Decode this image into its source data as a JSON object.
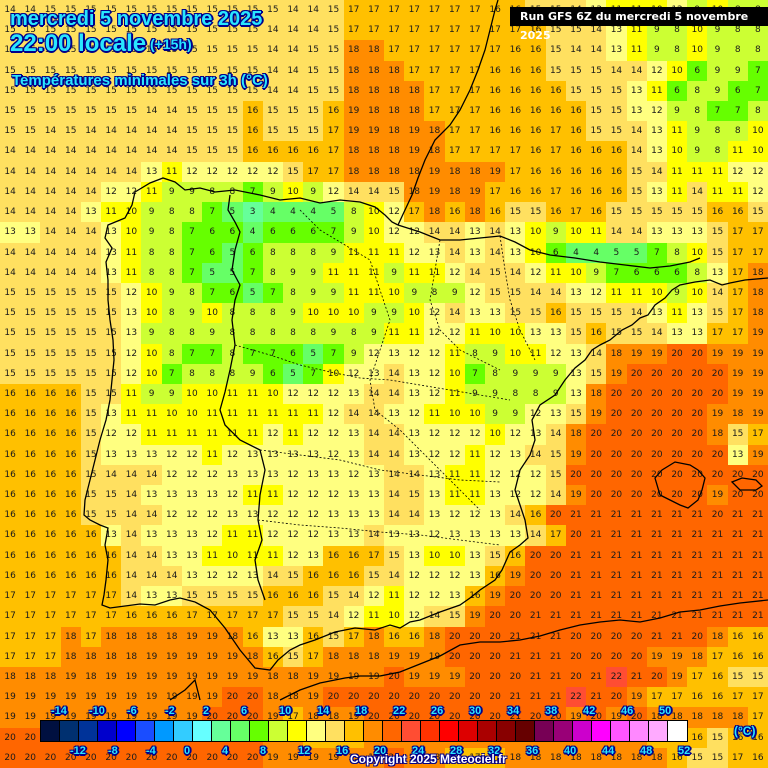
{
  "header": {
    "date": "mercredi 5 novembre 2025",
    "time": "22:00 locale",
    "offset": "(+15h)",
    "variable": "Températures minimales sur 3h (°C)",
    "run": "Run GFS 6Z du mercredi 5 novembre 2025"
  },
  "legend": {
    "unit": "(°C)",
    "top_labels": [
      "-14",
      "-10",
      "-6",
      "-2",
      "2",
      "6",
      "10",
      "14",
      "18",
      "22",
      "26",
      "30",
      "34",
      "38",
      "42",
      "46",
      "50"
    ],
    "bottom_labels": [
      "-12",
      "-8",
      "-4",
      "0",
      "4",
      "8",
      "12",
      "16",
      "20",
      "24",
      "28",
      "32",
      "36",
      "40",
      "44",
      "48",
      "52"
    ],
    "colors": [
      "#001040",
      "#003070",
      "#003399",
      "#0000cc",
      "#0000ff",
      "#1a4dff",
      "#0099ff",
      "#33ccff",
      "#66ffff",
      "#66ff99",
      "#66ff66",
      "#66ff00",
      "#ccff33",
      "#ffff00",
      "#ffff80",
      "#ffe060",
      "#ffc000",
      "#ff8c00",
      "#ff6600",
      "#ff4d33",
      "#ff3300",
      "#ff0000",
      "#dd0000",
      "#aa0000",
      "#880000",
      "#660000",
      "#770055",
      "#990077",
      "#cc00cc",
      "#ff00ff",
      "#ff55ff",
      "#ff88ff",
      "#ffaaff",
      "#ffffff"
    ],
    "min": -14,
    "step": 2
  },
  "copyright": "Copyright 2025 Meteociel.fr",
  "grid": {
    "cols": 38,
    "rows": 38,
    "values": [
      [
        14,
        14,
        15,
        15,
        15,
        15,
        15,
        15,
        15,
        15,
        15,
        15,
        15,
        15,
        14,
        14,
        15,
        17,
        17,
        17,
        17,
        17,
        17,
        17,
        16,
        16,
        15,
        15,
        14,
        13,
        11,
        11,
        10,
        12,
        9,
        10,
        8,
        8
      ],
      [
        15,
        15,
        15,
        15,
        15,
        15,
        15,
        15,
        15,
        15,
        15,
        15,
        15,
        14,
        14,
        14,
        15,
        17,
        17,
        17,
        17,
        17,
        17,
        17,
        17,
        17,
        16,
        15,
        15,
        14,
        13,
        11,
        9,
        8,
        10,
        9,
        8,
        8
      ],
      [
        15,
        15,
        15,
        15,
        15,
        15,
        15,
        15,
        15,
        15,
        15,
        15,
        15,
        14,
        14,
        15,
        15,
        18,
        18,
        17,
        17,
        17,
        17,
        17,
        17,
        16,
        16,
        15,
        14,
        14,
        13,
        11,
        9,
        8,
        10,
        9,
        8,
        8
      ],
      [
        15,
        15,
        15,
        15,
        15,
        15,
        15,
        15,
        15,
        15,
        15,
        15,
        15,
        14,
        14,
        15,
        15,
        18,
        18,
        18,
        17,
        17,
        17,
        17,
        16,
        16,
        16,
        15,
        15,
        15,
        14,
        14,
        12,
        10,
        6,
        9,
        9,
        7
      ],
      [
        15,
        15,
        15,
        15,
        15,
        15,
        15,
        15,
        15,
        15,
        15,
        15,
        15,
        14,
        14,
        15,
        15,
        18,
        18,
        18,
        18,
        17,
        17,
        17,
        16,
        16,
        16,
        16,
        15,
        15,
        15,
        13,
        11,
        6,
        8,
        9,
        6,
        7
      ],
      [
        15,
        15,
        15,
        15,
        15,
        15,
        15,
        14,
        14,
        15,
        15,
        15,
        16,
        15,
        15,
        15,
        16,
        19,
        18,
        18,
        18,
        17,
        17,
        17,
        16,
        16,
        16,
        16,
        16,
        15,
        15,
        13,
        12,
        9,
        8,
        7,
        7,
        8
      ],
      [
        15,
        15,
        14,
        15,
        14,
        14,
        14,
        14,
        14,
        15,
        15,
        15,
        16,
        15,
        15,
        15,
        17,
        19,
        19,
        18,
        19,
        18,
        17,
        17,
        16,
        16,
        16,
        17,
        16,
        15,
        15,
        14,
        13,
        11,
        9,
        8,
        8,
        10
      ],
      [
        14,
        14,
        14,
        14,
        14,
        14,
        14,
        14,
        14,
        15,
        15,
        15,
        16,
        16,
        16,
        16,
        17,
        18,
        18,
        18,
        19,
        18,
        17,
        17,
        17,
        17,
        16,
        17,
        16,
        16,
        16,
        14,
        13,
        10,
        9,
        8,
        11,
        10
      ],
      [
        14,
        14,
        14,
        14,
        14,
        14,
        14,
        13,
        11,
        12,
        12,
        12,
        12,
        12,
        15,
        17,
        17,
        18,
        18,
        18,
        18,
        19,
        18,
        18,
        19,
        17,
        16,
        16,
        16,
        16,
        16,
        15,
        14,
        11,
        11,
        11,
        12,
        12
      ],
      [
        14,
        14,
        14,
        14,
        14,
        12,
        12,
        11,
        9,
        9,
        8,
        8,
        7,
        9,
        10,
        9,
        12,
        14,
        14,
        15,
        18,
        19,
        18,
        19,
        17,
        16,
        16,
        17,
        16,
        16,
        16,
        15,
        13,
        11,
        14,
        11,
        11,
        12
      ],
      [
        14,
        14,
        14,
        14,
        13,
        11,
        10,
        9,
        8,
        8,
        7,
        5,
        3,
        4,
        4,
        4,
        5,
        8,
        10,
        12,
        17,
        18,
        16,
        18,
        16,
        15,
        15,
        16,
        17,
        16,
        15,
        15,
        15,
        15,
        15,
        16,
        16,
        15
      ],
      [
        13,
        13,
        14,
        14,
        14,
        13,
        10,
        9,
        8,
        7,
        6,
        6,
        4,
        6,
        6,
        6,
        7,
        9,
        10,
        12,
        12,
        14,
        14,
        13,
        14,
        13,
        10,
        9,
        10,
        11,
        14,
        14,
        13,
        13,
        13,
        15,
        17,
        17
      ],
      [
        14,
        14,
        14,
        14,
        14,
        13,
        11,
        8,
        8,
        7,
        6,
        5,
        6,
        8,
        8,
        8,
        9,
        11,
        11,
        11,
        12,
        13,
        14,
        13,
        14,
        13,
        10,
        6,
        4,
        4,
        5,
        5,
        7,
        8,
        10,
        15,
        17,
        17
      ],
      [
        14,
        14,
        14,
        14,
        14,
        13,
        11,
        8,
        8,
        7,
        5,
        5,
        7,
        8,
        9,
        9,
        11,
        11,
        11,
        9,
        11,
        11,
        12,
        14,
        15,
        14,
        12,
        11,
        10,
        9,
        7,
        6,
        6,
        6,
        8,
        13,
        17,
        18
      ],
      [
        15,
        15,
        15,
        15,
        15,
        15,
        12,
        10,
        9,
        8,
        7,
        6,
        5,
        7,
        8,
        9,
        9,
        11,
        11,
        10,
        9,
        8,
        9,
        12,
        15,
        15,
        14,
        14,
        13,
        12,
        11,
        11,
        10,
        9,
        10,
        14,
        17,
        18
      ],
      [
        15,
        15,
        15,
        15,
        15,
        15,
        13,
        10,
        8,
        9,
        10,
        8,
        8,
        8,
        9,
        10,
        10,
        10,
        9,
        9,
        10,
        12,
        14,
        13,
        13,
        15,
        15,
        16,
        15,
        15,
        15,
        14,
        13,
        11,
        13,
        15,
        17,
        18
      ],
      [
        15,
        15,
        15,
        15,
        15,
        15,
        13,
        9,
        8,
        8,
        9,
        8,
        8,
        8,
        8,
        8,
        9,
        8,
        9,
        11,
        11,
        12,
        12,
        11,
        10,
        10,
        13,
        13,
        15,
        16,
        15,
        15,
        14,
        13,
        13,
        17,
        17,
        19
      ],
      [
        15,
        15,
        15,
        15,
        15,
        15,
        12,
        10,
        8,
        7,
        7,
        8,
        7,
        7,
        6,
        5,
        7,
        9,
        12,
        13,
        12,
        12,
        11,
        8,
        9,
        10,
        11,
        12,
        13,
        14,
        18,
        19,
        19,
        20,
        20,
        19,
        19,
        19
      ],
      [
        15,
        15,
        15,
        15,
        15,
        15,
        12,
        10,
        7,
        8,
        8,
        8,
        9,
        6,
        5,
        7,
        10,
        12,
        13,
        14,
        13,
        12,
        10,
        7,
        8,
        9,
        9,
        9,
        13,
        15,
        19,
        20,
        20,
        20,
        20,
        20,
        19,
        19
      ],
      [
        16,
        16,
        16,
        16,
        15,
        15,
        11,
        9,
        9,
        10,
        10,
        11,
        11,
        10,
        12,
        12,
        12,
        13,
        14,
        14,
        13,
        12,
        11,
        9,
        9,
        8,
        8,
        9,
        13,
        18,
        20,
        20,
        20,
        20,
        20,
        20,
        19,
        19
      ],
      [
        16,
        16,
        16,
        16,
        15,
        13,
        11,
        11,
        10,
        10,
        11,
        11,
        11,
        11,
        11,
        11,
        12,
        14,
        14,
        13,
        12,
        11,
        10,
        10,
        9,
        9,
        12,
        13,
        15,
        19,
        20,
        20,
        20,
        20,
        20,
        19,
        18,
        19
      ],
      [
        16,
        16,
        16,
        16,
        15,
        12,
        12,
        11,
        11,
        11,
        11,
        11,
        11,
        12,
        11,
        12,
        12,
        13,
        14,
        14,
        13,
        12,
        12,
        12,
        10,
        12,
        13,
        14,
        18,
        20,
        20,
        20,
        20,
        20,
        20,
        18,
        15,
        17
      ],
      [
        16,
        16,
        16,
        16,
        15,
        13,
        13,
        13,
        12,
        12,
        11,
        12,
        13,
        13,
        13,
        13,
        12,
        13,
        14,
        14,
        13,
        12,
        12,
        11,
        12,
        13,
        14,
        15,
        19,
        20,
        20,
        20,
        20,
        20,
        20,
        20,
        13,
        19
      ],
      [
        16,
        16,
        16,
        16,
        15,
        14,
        14,
        14,
        12,
        12,
        12,
        13,
        13,
        13,
        12,
        13,
        13,
        12,
        13,
        14,
        14,
        13,
        11,
        11,
        12,
        12,
        12,
        15,
        20,
        20,
        20,
        20,
        20,
        20,
        20,
        20,
        20,
        20
      ],
      [
        16,
        16,
        16,
        16,
        15,
        15,
        14,
        13,
        13,
        13,
        13,
        12,
        11,
        11,
        12,
        12,
        12,
        13,
        13,
        14,
        15,
        13,
        11,
        11,
        13,
        12,
        12,
        14,
        19,
        20,
        20,
        20,
        20,
        20,
        20,
        19,
        20,
        20
      ],
      [
        16,
        16,
        16,
        16,
        15,
        15,
        14,
        14,
        12,
        12,
        12,
        13,
        13,
        12,
        12,
        12,
        13,
        13,
        13,
        14,
        14,
        13,
        12,
        12,
        13,
        14,
        16,
        20,
        21,
        21,
        21,
        21,
        21,
        21,
        21,
        20,
        21,
        21
      ],
      [
        16,
        16,
        16,
        16,
        16,
        13,
        14,
        13,
        13,
        13,
        12,
        11,
        11,
        12,
        12,
        12,
        13,
        13,
        14,
        13,
        13,
        12,
        13,
        13,
        13,
        13,
        14,
        17,
        20,
        21,
        21,
        21,
        21,
        21,
        21,
        21,
        21,
        21
      ],
      [
        16,
        16,
        16,
        16,
        16,
        16,
        14,
        14,
        13,
        13,
        11,
        10,
        11,
        11,
        12,
        13,
        16,
        16,
        17,
        15,
        13,
        10,
        10,
        13,
        15,
        16,
        20,
        20,
        21,
        21,
        21,
        21,
        21,
        21,
        21,
        21,
        21,
        21
      ],
      [
        16,
        16,
        16,
        16,
        16,
        16,
        14,
        14,
        14,
        13,
        12,
        12,
        13,
        14,
        15,
        16,
        16,
        16,
        15,
        14,
        12,
        12,
        12,
        13,
        16,
        19,
        20,
        20,
        21,
        21,
        21,
        21,
        21,
        21,
        21,
        21,
        21,
        21
      ],
      [
        17,
        17,
        17,
        17,
        17,
        17,
        14,
        13,
        13,
        15,
        15,
        15,
        15,
        16,
        16,
        16,
        15,
        14,
        12,
        11,
        12,
        12,
        13,
        16,
        19,
        20,
        20,
        20,
        21,
        21,
        21,
        21,
        21,
        21,
        21,
        21,
        21,
        21
      ],
      [
        17,
        17,
        17,
        17,
        17,
        17,
        16,
        16,
        16,
        17,
        17,
        17,
        17,
        17,
        15,
        15,
        14,
        12,
        11,
        10,
        12,
        14,
        15,
        19,
        20,
        20,
        21,
        21,
        21,
        21,
        21,
        21,
        21,
        21,
        21,
        21,
        21,
        21
      ],
      [
        17,
        17,
        17,
        18,
        17,
        18,
        18,
        18,
        18,
        19,
        19,
        18,
        16,
        13,
        13,
        16,
        15,
        17,
        18,
        16,
        16,
        18,
        20,
        20,
        20,
        21,
        21,
        21,
        20,
        20,
        20,
        20,
        21,
        21,
        20,
        18,
        16,
        16
      ],
      [
        17,
        17,
        17,
        18,
        18,
        18,
        18,
        19,
        19,
        19,
        19,
        19,
        18,
        16,
        15,
        17,
        18,
        18,
        18,
        19,
        19,
        19,
        20,
        20,
        20,
        21,
        21,
        21,
        20,
        20,
        20,
        20,
        19,
        19,
        18,
        17,
        16,
        16
      ],
      [
        18,
        18,
        18,
        19,
        18,
        19,
        19,
        19,
        19,
        19,
        19,
        19,
        19,
        18,
        18,
        19,
        19,
        19,
        19,
        20,
        19,
        19,
        19,
        20,
        20,
        20,
        21,
        21,
        20,
        21,
        22,
        21,
        20,
        19,
        17,
        16,
        15,
        15
      ],
      [
        19,
        19,
        19,
        19,
        19,
        19,
        19,
        19,
        19,
        19,
        19,
        20,
        20,
        18,
        18,
        19,
        20,
        20,
        20,
        20,
        20,
        20,
        20,
        20,
        20,
        21,
        21,
        21,
        22,
        21,
        20,
        19,
        17,
        17,
        16,
        16,
        17,
        17
      ],
      [
        19,
        19,
        19,
        19,
        19,
        19,
        19,
        19,
        19,
        19,
        20,
        20,
        20,
        19,
        17,
        18,
        18,
        19,
        20,
        20,
        20,
        20,
        20,
        20,
        20,
        21,
        20,
        20,
        19,
        20,
        19,
        20,
        18,
        18,
        18,
        18,
        18,
        17
      ],
      [
        20,
        20,
        20,
        20,
        20,
        20,
        20,
        20,
        20,
        20,
        20,
        20,
        20,
        19,
        18,
        17,
        17,
        17,
        18,
        18,
        18,
        18,
        18,
        18,
        18,
        19,
        19,
        18,
        18,
        18,
        18,
        18,
        17,
        16,
        16,
        15,
        16,
        16
      ],
      [
        20,
        20,
        20,
        20,
        20,
        20,
        20,
        20,
        20,
        20,
        20,
        20,
        20,
        19,
        19,
        19,
        19,
        19,
        19,
        20,
        19,
        18,
        17,
        17,
        17,
        18,
        18,
        18,
        18,
        18,
        18,
        18,
        18,
        16,
        15,
        15,
        17,
        16
      ]
    ]
  }
}
